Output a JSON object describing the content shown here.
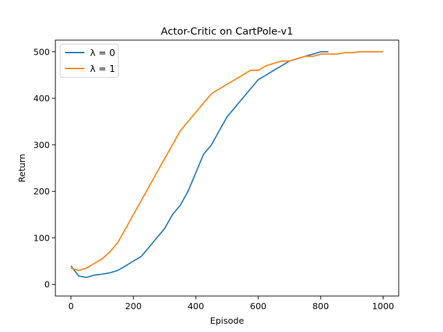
{
  "chart_data": {
    "type": "line",
    "title": "Actor-Critic on CartPole-v1",
    "xlabel": "Episode",
    "ylabel": "Return",
    "xlim": [
      -50,
      1050
    ],
    "ylim": [
      -25,
      525
    ],
    "xticks": [
      0,
      200,
      400,
      600,
      800,
      1000
    ],
    "yticks": [
      0,
      100,
      200,
      300,
      400,
      500
    ],
    "grid": false,
    "legend_position": "top-left",
    "series": [
      {
        "name": "λ = 0",
        "color": "#1f77b4",
        "x": [
          0,
          25,
          50,
          75,
          100,
          125,
          150,
          175,
          200,
          225,
          250,
          275,
          300,
          325,
          350,
          375,
          400,
          425,
          450,
          475,
          500,
          525,
          550,
          575,
          600,
          625,
          650,
          675,
          700,
          725,
          750,
          775,
          800,
          825
        ],
        "y": [
          40,
          18,
          15,
          20,
          22,
          25,
          30,
          40,
          50,
          60,
          80,
          100,
          120,
          150,
          170,
          200,
          240,
          280,
          300,
          330,
          360,
          380,
          400,
          420,
          440,
          450,
          460,
          470,
          480,
          485,
          490,
          495,
          500,
          500
        ]
      },
      {
        "name": "λ = 1",
        "color": "#ff7f0e",
        "x": [
          0,
          25,
          50,
          75,
          100,
          125,
          150,
          175,
          200,
          225,
          250,
          275,
          300,
          325,
          350,
          375,
          400,
          425,
          450,
          475,
          500,
          525,
          550,
          575,
          600,
          625,
          650,
          675,
          700,
          725,
          750,
          775,
          800,
          825,
          850,
          875,
          900,
          925,
          950,
          975,
          1000
        ],
        "y": [
          35,
          30,
          35,
          45,
          55,
          70,
          90,
          120,
          150,
          180,
          210,
          240,
          270,
          300,
          330,
          350,
          370,
          390,
          410,
          420,
          430,
          440,
          450,
          460,
          460,
          470,
          475,
          480,
          480,
          485,
          490,
          490,
          495,
          495,
          495,
          498,
          498,
          500,
          500,
          500,
          500
        ]
      }
    ]
  }
}
